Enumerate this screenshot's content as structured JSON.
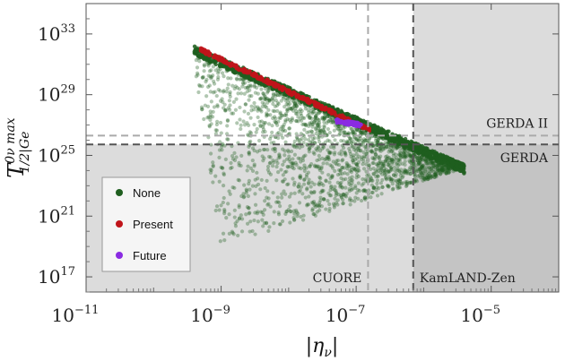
{
  "chart_data": {
    "type": "scatter",
    "xscale": "log",
    "yscale": "log",
    "xlim": [
      1e-11,
      0.0001
    ],
    "ylim": [
      1e+16,
      1e+35
    ],
    "x_ticks": [
      {
        "value": 1e-11,
        "base": "10",
        "exp": "−11"
      },
      {
        "value": 1e-09,
        "base": "10",
        "exp": "−9"
      },
      {
        "value": 1e-07,
        "base": "10",
        "exp": "−7"
      },
      {
        "value": 1e-05,
        "base": "10",
        "exp": "−5"
      }
    ],
    "y_ticks": [
      {
        "value": 1e+17,
        "base": "10",
        "exp": "17"
      },
      {
        "value": 1e+21,
        "base": "10",
        "exp": "21"
      },
      {
        "value": 1e+25,
        "base": "10",
        "exp": "25"
      },
      {
        "value": 1e+29,
        "base": "10",
        "exp": "29"
      },
      {
        "value": 1e+33,
        "base": "10",
        "exp": "33"
      }
    ],
    "xlabel": "|η",
    "xlabel_sub": "ν",
    "xlabel_end": "|",
    "ylabel": "T",
    "ylabel_sup": "0ν max",
    "ylabel_sub": "1/2|Ge",
    "limits": [
      {
        "label": "GERDA",
        "axis": "y",
        "value": 5.3e+25,
        "style": "dark-dashed"
      },
      {
        "label": "GERDA II",
        "axis": "y",
        "value": 2e+26,
        "style": "light-dashed"
      },
      {
        "label": "KamLAND-Zen",
        "axis": "x",
        "value": 7e-07,
        "style": "dark-dashed"
      },
      {
        "label": "CUORE",
        "axis": "x",
        "value": 1.5e-07,
        "style": "light-dashed"
      }
    ],
    "legend": {
      "placement": "bottom-left",
      "entries": [
        {
          "name": "None",
          "color": "#1f5e1f"
        },
        {
          "name": "Present",
          "color": "#c0141a"
        },
        {
          "name": "Future",
          "color": "#8a2be2"
        }
      ]
    },
    "series": [
      {
        "name": "None",
        "color": "#1f5e1f",
        "cloud": {
          "upper_edge": [
            [
              4e-10,
              1.6e+32
            ],
            [
              1.2e-07,
              1e+27
            ],
            [
              4e-06,
              2.5e+24
            ]
          ],
          "lower_edge": [
            [
              4e-10,
              1e+31
            ],
            [
              1e-09,
              1e+19
            ],
            [
              4e-06,
              1.5e+24
            ]
          ]
        },
        "dense_edge": [
          [
            4e-10,
            1.6e+32
          ],
          [
            4e-06,
            2.5e+24
          ]
        ]
      },
      {
        "name": "Present",
        "color": "#c0141a",
        "segment": [
          [
            5e-10,
            1.2e+32
          ],
          [
            1.6e-07,
            6e+26
          ]
        ]
      },
      {
        "name": "Future",
        "color": "#8a2be2",
        "segment": [
          [
            5e-08,
            2.5e+27
          ],
          [
            1.2e-07,
            1.3e+27
          ]
        ]
      }
    ]
  }
}
